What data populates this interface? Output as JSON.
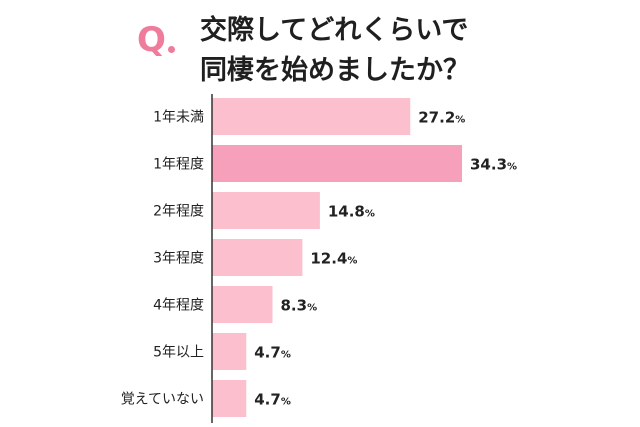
{
  "header": {
    "q_mark": "Q",
    "title_line_1": "交際してどれくらいで",
    "title_line_2": "同棲を始めましたか？"
  },
  "colors": {
    "bar_default": "#fbbfcd",
    "bar_highlight": "#f7a0bb",
    "accent": "#f07c9b",
    "axis": "#333333"
  },
  "chart_data": {
    "type": "bar",
    "orientation": "horizontal",
    "categories": [
      "1年未満",
      "1年程度",
      "2年程度",
      "3年程度",
      "4年程度",
      "5年以上",
      "覚えていない"
    ],
    "values": [
      27.2,
      34.3,
      14.8,
      12.4,
      8.3,
      4.7,
      4.7
    ],
    "unit": "%",
    "highlight_index": 1,
    "xlim": [
      0,
      34.3
    ],
    "grid": false,
    "legend": "none"
  }
}
